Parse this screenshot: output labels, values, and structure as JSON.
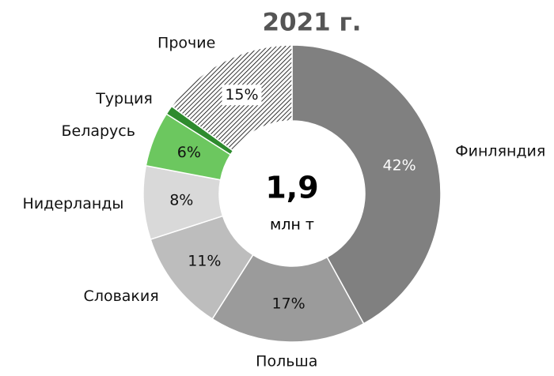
{
  "chart_data": {
    "type": "donut",
    "title": "2021 г.",
    "center_value": "1,9",
    "center_unit": "млн т",
    "categories": [
      "Финляндия",
      "Польша",
      "Словакия",
      "Нидерланды",
      "Беларусь",
      "Турция",
      "Прочие"
    ],
    "values": [
      42,
      17,
      11,
      8,
      6,
      1,
      15
    ],
    "value_labels": [
      "42%",
      "17%",
      "11%",
      "8%",
      "6%",
      null,
      "15%"
    ],
    "colors": [
      "#808080",
      "#9b9b9b",
      "#bdbdbd",
      "#d9d9d9",
      "#6cc75f",
      "#2e8b2e",
      "#000000"
    ],
    "hatch": [
      false,
      false,
      false,
      false,
      false,
      false,
      true
    ]
  }
}
